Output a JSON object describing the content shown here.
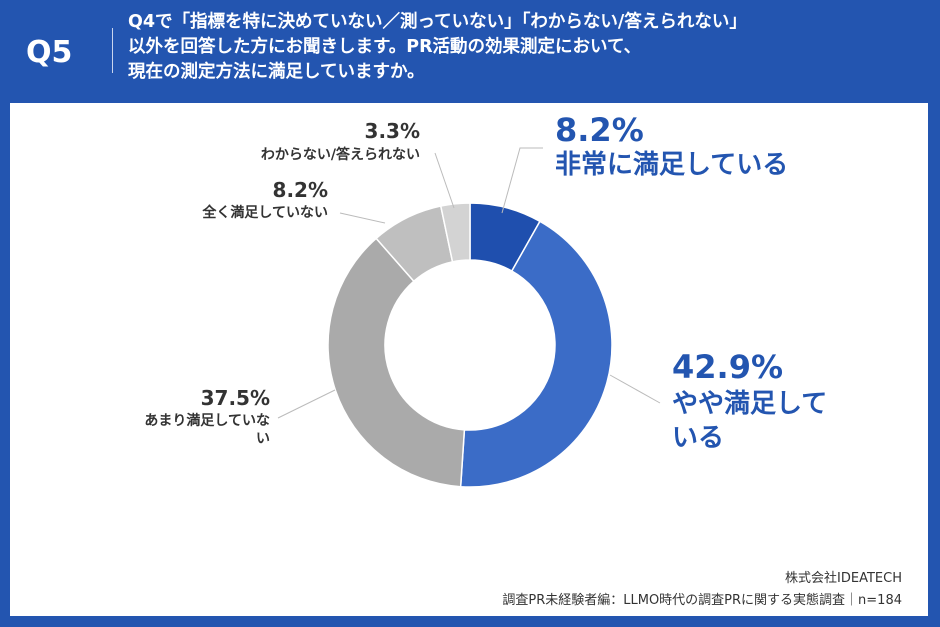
{
  "header": {
    "question_no": "Q5",
    "question_lines": [
      "Q4で「指標を特に決めていない／測っていない」「わからない/答えられない」",
      "以外を回答した方にお聞きします。PR活動の効果測定において、",
      "現在の測定方法に満足していますか。"
    ]
  },
  "chart_data": {
    "type": "pie",
    "donut": true,
    "start": "top",
    "direction": "clockwise",
    "slices": [
      {
        "label": "非常に満足している",
        "value": 8.2,
        "display": "8.2%",
        "color": "#1f4fae"
      },
      {
        "label": "やや満足している",
        "value": 42.9,
        "display": "42.9%",
        "color": "#3b6cc7"
      },
      {
        "label": "あまり満足していない",
        "value": 37.5,
        "display": "37.5%",
        "color": "#aaaaaa"
      },
      {
        "label": "全く満足していない",
        "value": 8.2,
        "display": "8.2%",
        "color": "#bfbfbf"
      },
      {
        "label": "わからない/答えられない",
        "value": 3.3,
        "display": "3.3%",
        "color": "#d3d3d3"
      }
    ]
  },
  "footer": {
    "company": "株式会社IDEATECH",
    "source": "調査PR未経験者編：LLMO時代の調査PRに関する実態調査｜n=184"
  },
  "colors": {
    "header_bg": "#2355b0",
    "accent_blue": "#2355b0",
    "label_gray": "#333333"
  }
}
